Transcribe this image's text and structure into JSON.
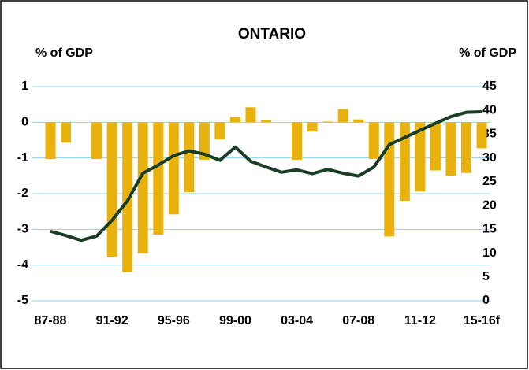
{
  "chart_data": {
    "type": "bar-line",
    "title": "ONTARIO",
    "y_label": "% of GDP",
    "y2_label": "% of GDP",
    "categories": [
      "87-88",
      null,
      null,
      null,
      "91-92",
      null,
      null,
      null,
      "95-96",
      null,
      null,
      null,
      "99-00",
      null,
      null,
      null,
      "03-04",
      null,
      null,
      null,
      "07-08",
      null,
      null,
      null,
      "11-12",
      null,
      null,
      null,
      "15-16f"
    ],
    "series": [
      {
        "type": "bar",
        "color": "#e8b10e",
        "values": [
          -1.03,
          -0.57,
          0,
          -1.03,
          -3.77,
          -4.2,
          -3.68,
          -3.15,
          -2.58,
          -1.96,
          -1.05,
          -0.48,
          0.15,
          0.42,
          0.07,
          0,
          -1.05,
          -0.26,
          0.02,
          0.37,
          0.08,
          -1.03,
          -3.2,
          -2.2,
          -1.94,
          -1.35,
          -1.5,
          -1.42,
          -0.73
        ]
      },
      {
        "type": "line",
        "axis": "y2",
        "color": "#1a3d26",
        "values": [
          14.6,
          13.7,
          12.7,
          13.6,
          16.9,
          21,
          26.8,
          28.5,
          30.5,
          31.5,
          30.8,
          29.5,
          32.3,
          29.3,
          28.1,
          27,
          27.5,
          26.7,
          27.6,
          26.8,
          26.2,
          28.1,
          32.8,
          34.3,
          35.8,
          37.3,
          38.7,
          39.6,
          39.7
        ]
      }
    ],
    "ylim": [
      -5,
      1
    ],
    "yticks": [
      1,
      0,
      -1,
      -2,
      -3,
      -4,
      -5
    ],
    "y2lim": [
      0,
      45
    ],
    "y2ticks": [
      45,
      40,
      35,
      30,
      25,
      20,
      15,
      10,
      5,
      0
    ],
    "grid": true
  }
}
